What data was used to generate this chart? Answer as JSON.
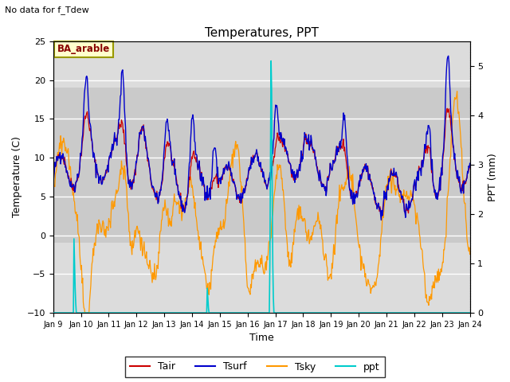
{
  "title": "Temperatures, PPT",
  "subtitle": "No data for f_Tdew",
  "site_label": "BA_arable",
  "xlabel": "Time",
  "ylabel_left": "Temperature (C)",
  "ylabel_right": "PPT (mm)",
  "ylim_left": [
    -10,
    25
  ],
  "ylim_right": [
    0.0,
    5.5
  ],
  "colors": {
    "Tair": "#cc0000",
    "Tsurf": "#0000cc",
    "Tsky": "#ff9900",
    "ppt": "#00cccc",
    "background": "#dcdcdc",
    "band_color": "#c8c8c8",
    "site_box_bg": "#ffffcc",
    "site_box_edge": "#999900"
  },
  "legend_labels": [
    "Tair",
    "Tsurf",
    "Tsky",
    "ppt"
  ],
  "legend_colors": [
    "#cc0000",
    "#0000cc",
    "#ff9900",
    "#00cccc"
  ]
}
